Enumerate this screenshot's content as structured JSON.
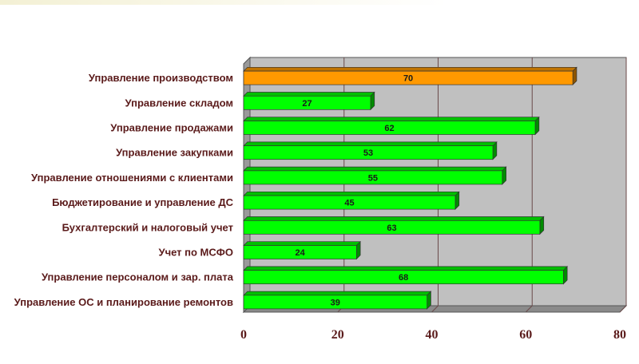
{
  "chart_data": {
    "type": "bar",
    "orientation": "horizontal",
    "categories": [
      "Управление производством",
      "Управление складом",
      "Управление продажами",
      "Управление закупками",
      "Управление отношениями с клиентами",
      "Бюджетирование и управление ДС",
      "Бухгалтерский и налоговый учет",
      "Учет по МСФО",
      "Управление персоналом и зар. плата",
      "Управление ОС и планирование ремонтов"
    ],
    "values": [
      70,
      27,
      62,
      53,
      55,
      45,
      63,
      24,
      68,
      39
    ],
    "value_labels": [
      "70",
      "27",
      "62",
      "53",
      "55",
      "45",
      "63",
      "24",
      "68",
      "39"
    ],
    "bar_colors": [
      "#ff9900",
      "#00ff00",
      "#00ff00",
      "#00ff00",
      "#00ff00",
      "#00ff00",
      "#00ff00",
      "#00ff00",
      "#00ff00",
      "#00ff00"
    ],
    "xlim": [
      0,
      80
    ],
    "xticks": [
      0,
      20,
      40,
      60,
      80
    ],
    "xtick_labels": [
      "0",
      "20",
      "40",
      "60",
      "80"
    ],
    "grid": true,
    "plot_background": "#c0c0c0",
    "title": "",
    "xlabel": "",
    "ylabel": ""
  }
}
